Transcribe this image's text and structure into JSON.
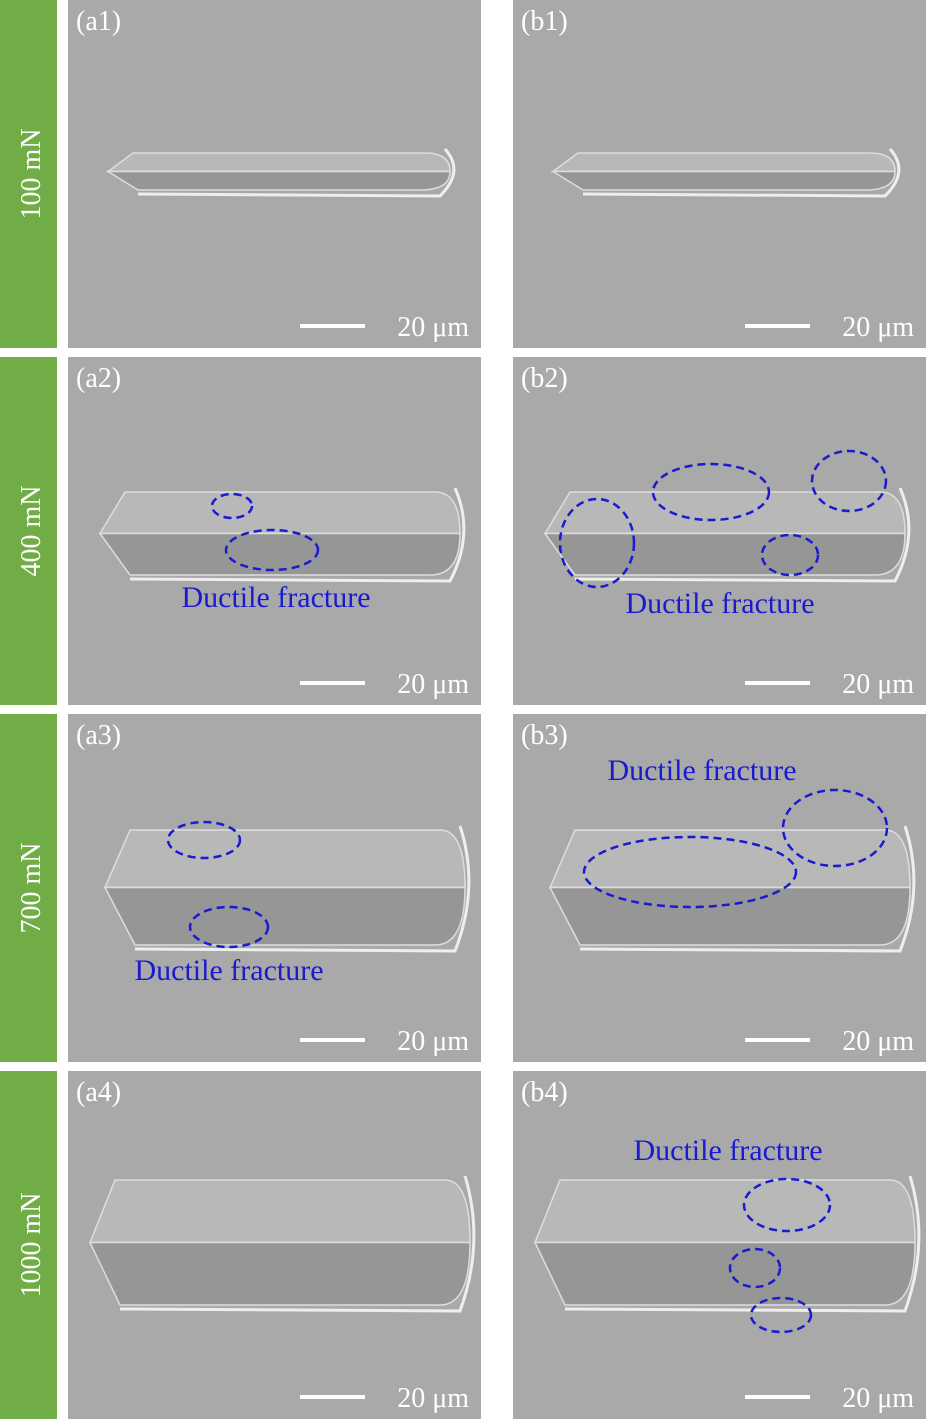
{
  "rows": [
    {
      "load": "100 mN",
      "panels": [
        {
          "label": "(a1)",
          "scale_bar": "20 μm"
        },
        {
          "label": "(b1)",
          "scale_bar": "20 μm"
        }
      ]
    },
    {
      "load": "400 mN",
      "panels": [
        {
          "label": "(a2)",
          "scale_bar": "20 μm",
          "annotation": "Ductile fracture"
        },
        {
          "label": "(b2)",
          "scale_bar": "20 μm",
          "annotation": "Ductile fracture"
        }
      ]
    },
    {
      "load": "700 mN",
      "panels": [
        {
          "label": "(a3)",
          "scale_bar": "20 μm",
          "annotation": "Ductile fracture"
        },
        {
          "label": "(b3)",
          "scale_bar": "20 μm",
          "annotation": "Ductile fracture"
        }
      ]
    },
    {
      "load": "1000 mN",
      "panels": [
        {
          "label": "(a4)",
          "scale_bar": "20 μm"
        },
        {
          "label": "(b4)",
          "scale_bar": "20 μm",
          "annotation": "Ductile fracture"
        }
      ]
    }
  ]
}
